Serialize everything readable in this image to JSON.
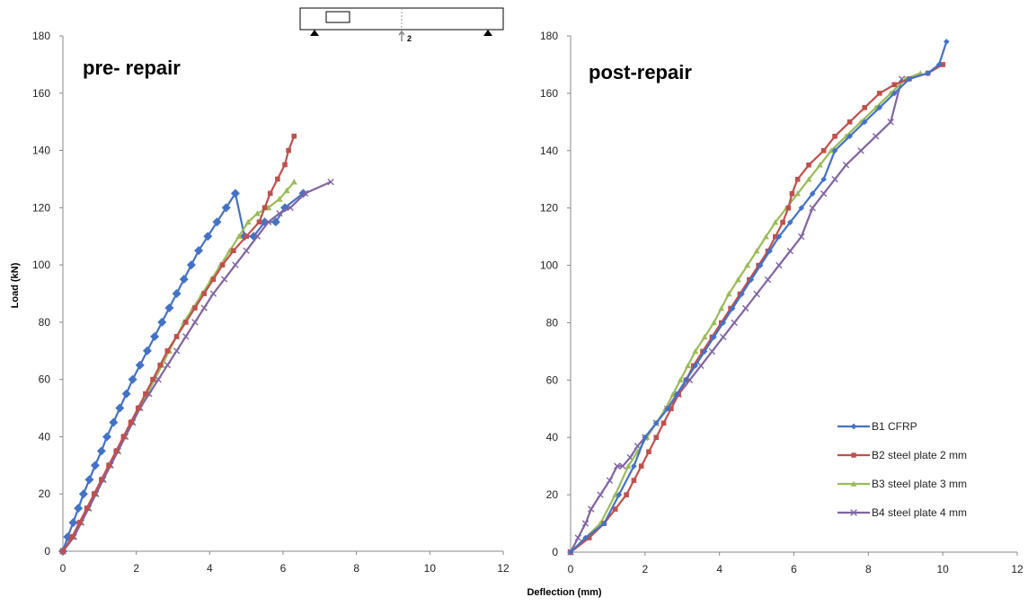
{
  "figure": {
    "xlabel": "Deflection (mm)",
    "ylabel": "Load (kN)",
    "beam_sketch_label": "2"
  },
  "colors": {
    "B1": "#4472c4",
    "B2": "#c0504d",
    "B3": "#9bbb59",
    "B4": "#8064a2"
  },
  "chart_data": [
    {
      "type": "line",
      "title": "pre- repair",
      "xlabel": "",
      "ylabel": "Load (kN)",
      "xlim": [
        0,
        12
      ],
      "ylim": [
        0,
        180
      ],
      "xticks": [
        0,
        2,
        4,
        6,
        8,
        10,
        12
      ],
      "yticks": [
        0,
        20,
        40,
        60,
        80,
        100,
        120,
        140,
        160,
        180
      ],
      "grid": false,
      "series": [
        {
          "key": "B1",
          "marker": "diamond",
          "x": [
            0,
            0.13,
            0.28,
            0.42,
            0.56,
            0.72,
            0.88,
            1.05,
            1.2,
            1.38,
            1.55,
            1.73,
            1.9,
            2.1,
            2.3,
            2.5,
            2.7,
            2.9,
            3.1,
            3.3,
            3.5,
            3.7,
            3.95,
            4.2,
            4.45,
            4.7,
            4.95,
            5.2,
            5.5,
            5.8,
            6.05,
            6.55
          ],
          "y": [
            0,
            5,
            10,
            15,
            20,
            25,
            30,
            35,
            40,
            45,
            50,
            55,
            60,
            65,
            70,
            75,
            80,
            85,
            90,
            95,
            100,
            105,
            110,
            115,
            120,
            125,
            110,
            110,
            115,
            115,
            120,
            125
          ]
        },
        {
          "key": "B2",
          "marker": "square",
          "x": [
            0,
            0.25,
            0.45,
            0.65,
            0.85,
            1.05,
            1.25,
            1.45,
            1.65,
            1.85,
            2.05,
            2.25,
            2.45,
            2.65,
            2.85,
            3.1,
            3.35,
            3.6,
            3.85,
            4.1,
            4.35,
            4.65,
            5.0,
            5.35,
            5.5,
            5.65,
            5.85,
            6.05,
            6.15,
            6.3
          ],
          "y": [
            0,
            5,
            10,
            15,
            20,
            25,
            30,
            35,
            40,
            45,
            50,
            55,
            60,
            65,
            70,
            75,
            80,
            85,
            90,
            95,
            100,
            105,
            110,
            115,
            120,
            125,
            130,
            135,
            140,
            145
          ]
        },
        {
          "key": "B3",
          "marker": "triangle",
          "x": [
            0,
            0.3,
            0.5,
            0.7,
            0.9,
            1.1,
            1.3,
            1.5,
            1.7,
            1.9,
            2.1,
            2.3,
            2.5,
            2.7,
            2.9,
            3.1,
            3.3,
            3.55,
            3.8,
            4.05,
            4.3,
            4.55,
            4.8,
            5.05,
            5.3,
            5.6,
            5.9,
            6.1,
            6.3
          ],
          "y": [
            0,
            5,
            10,
            15,
            20,
            25,
            30,
            35,
            40,
            45,
            50,
            55,
            60,
            65,
            70,
            75,
            80,
            85,
            90,
            95,
            100,
            105,
            110,
            115,
            118,
            120,
            123,
            126,
            129
          ]
        },
        {
          "key": "B4",
          "marker": "x",
          "x": [
            0,
            0.3,
            0.5,
            0.7,
            0.9,
            1.1,
            1.3,
            1.5,
            1.7,
            1.9,
            2.1,
            2.35,
            2.6,
            2.85,
            3.1,
            3.35,
            3.6,
            3.85,
            4.1,
            4.4,
            4.7,
            5.0,
            5.3,
            5.6,
            5.9,
            6.2,
            6.6,
            7.3
          ],
          "y": [
            0,
            5,
            10,
            15,
            20,
            25,
            30,
            35,
            40,
            45,
            50,
            55,
            60,
            65,
            70,
            75,
            80,
            85,
            90,
            95,
            100,
            105,
            110,
            115,
            118,
            120,
            125,
            129
          ]
        }
      ]
    },
    {
      "type": "line",
      "title": "post-repair",
      "xlabel": "Deflection (mm)",
      "ylabel": "",
      "xlim": [
        0,
        12
      ],
      "ylim": [
        0,
        180
      ],
      "xticks": [
        0,
        2,
        4,
        6,
        8,
        10,
        12
      ],
      "yticks": [
        0,
        20,
        40,
        60,
        80,
        100,
        120,
        140,
        160,
        180
      ],
      "grid": false,
      "legend_position": "bottom-right",
      "series": [
        {
          "key": "B1",
          "name": "B1   CFRP",
          "marker": "diamond",
          "x": [
            0,
            0.4,
            0.9,
            1.3,
            1.7,
            2.0,
            2.3,
            2.6,
            2.85,
            3.1,
            3.35,
            3.6,
            3.85,
            4.1,
            4.35,
            4.6,
            4.85,
            5.1,
            5.35,
            5.6,
            5.9,
            6.2,
            6.5,
            6.8,
            7.1,
            7.5,
            7.9,
            8.3,
            8.7,
            9.1,
            9.6,
            9.9,
            10.1
          ],
          "y": [
            0,
            5,
            10,
            20,
            30,
            40,
            45,
            50,
            55,
            60,
            65,
            70,
            75,
            80,
            85,
            90,
            95,
            100,
            105,
            110,
            115,
            120,
            125,
            130,
            140,
            145,
            150,
            155,
            160,
            165,
            167,
            170,
            178
          ]
        },
        {
          "key": "B2",
          "name": "B2    steel plate  2 mm",
          "marker": "square",
          "x": [
            0,
            0.5,
            0.9,
            1.2,
            1.5,
            1.7,
            1.9,
            2.1,
            2.3,
            2.5,
            2.7,
            2.9,
            3.1,
            3.3,
            3.55,
            3.8,
            4.05,
            4.3,
            4.55,
            4.8,
            5.05,
            5.3,
            5.5,
            5.7,
            5.85,
            5.95,
            6.1,
            6.4,
            6.8,
            7.1,
            7.5,
            7.9,
            8.3,
            8.7,
            9.1,
            9.6,
            10.0
          ],
          "y": [
            0,
            5,
            10,
            15,
            20,
            25,
            30,
            35,
            40,
            45,
            50,
            55,
            60,
            65,
            70,
            75,
            80,
            85,
            90,
            95,
            100,
            105,
            110,
            115,
            120,
            125,
            130,
            135,
            140,
            145,
            150,
            155,
            160,
            163,
            165,
            167,
            170
          ]
        },
        {
          "key": "B3",
          "name": "B3    steel plate  3 mm",
          "marker": "triangle",
          "x": [
            0,
            0.4,
            0.8,
            1.2,
            1.55,
            1.8,
            2.05,
            2.3,
            2.55,
            2.75,
            2.95,
            3.15,
            3.35,
            3.6,
            3.85,
            4.05,
            4.25,
            4.5,
            4.75,
            5.0,
            5.25,
            5.5,
            5.8,
            6.1,
            6.4,
            6.7,
            7.0,
            7.4,
            7.8,
            8.2,
            8.6,
            9.0,
            9.4
          ],
          "y": [
            0,
            5,
            10,
            20,
            30,
            35,
            40,
            45,
            50,
            55,
            60,
            65,
            70,
            75,
            80,
            85,
            90,
            95,
            100,
            105,
            110,
            115,
            120,
            125,
            130,
            135,
            140,
            145,
            150,
            155,
            160,
            165,
            167
          ]
        },
        {
          "key": "B4",
          "name": "B4     steel plate  4 mm",
          "marker": "x",
          "x": [
            0,
            0.2,
            0.4,
            0.55,
            0.8,
            1.05,
            1.25,
            1.4,
            1.6,
            1.8,
            2.0,
            2.3,
            2.6,
            2.9,
            3.2,
            3.5,
            3.8,
            4.1,
            4.4,
            4.7,
            5.0,
            5.3,
            5.6,
            5.9,
            6.2,
            6.5,
            6.8,
            7.1,
            7.4,
            7.8,
            8.2,
            8.6,
            8.9
          ],
          "y": [
            0,
            5,
            10,
            15,
            20,
            25,
            30,
            30,
            33,
            37,
            40,
            45,
            50,
            55,
            60,
            65,
            70,
            75,
            80,
            85,
            90,
            95,
            100,
            105,
            110,
            120,
            125,
            130,
            135,
            140,
            145,
            150,
            165
          ]
        }
      ]
    }
  ]
}
